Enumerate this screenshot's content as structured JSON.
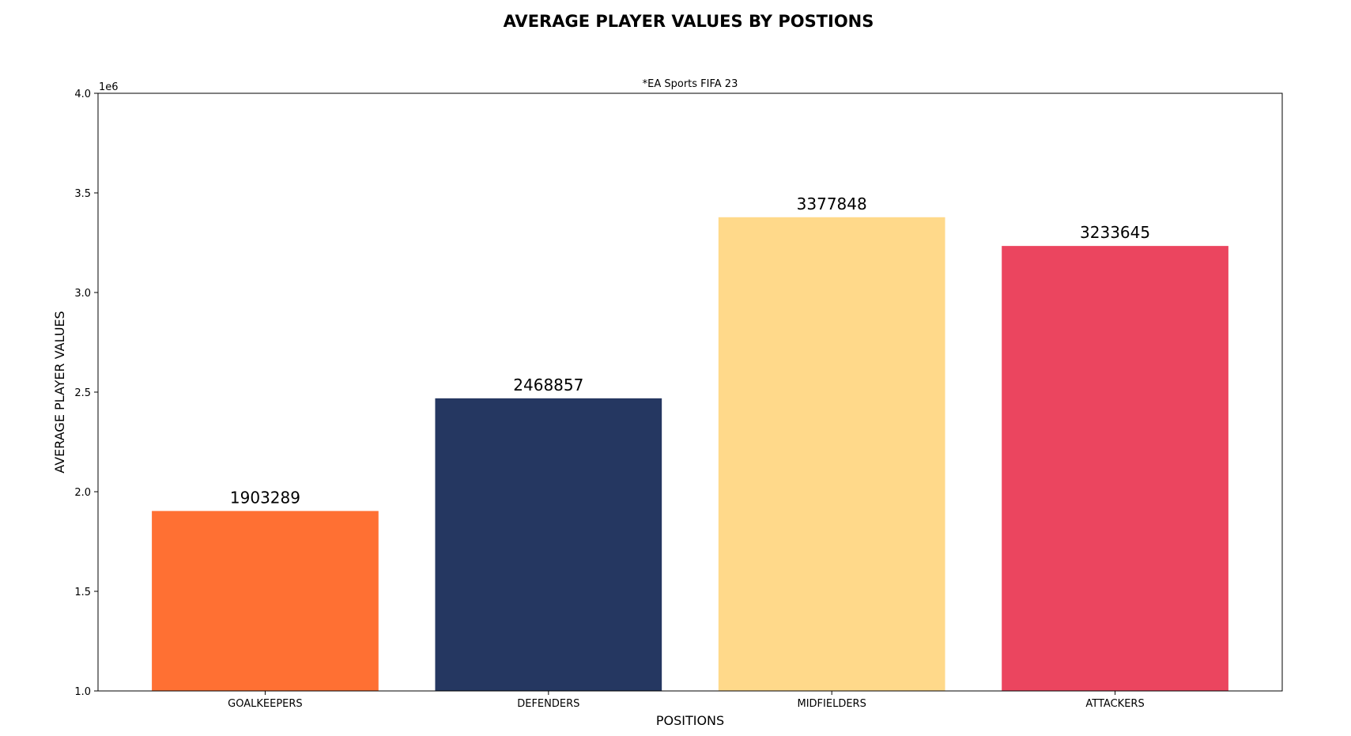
{
  "chart_data": {
    "type": "bar",
    "title": "AVERAGE PLAYER VALUES BY POSTIONS",
    "subtitle": "*EA Sports FIFA 23",
    "xlabel": "POSITIONS",
    "ylabel": "AVERAGE PLAYER VALUES",
    "categories": [
      "GOALKEEPERS",
      "DEFENDERS",
      "MIDFIELDERS",
      "ATTACKERS"
    ],
    "values": [
      1903289,
      2468857,
      3377848,
      3233645
    ],
    "data_labels": [
      "1903289",
      "2468857",
      "3377848",
      "3233645"
    ],
    "colors": [
      "#ff7033",
      "#253761",
      "#ffd98a",
      "#eb455f"
    ],
    "ylim": [
      1000000,
      4000000
    ],
    "yticks": [
      1000000,
      1500000,
      2000000,
      2500000,
      3000000,
      3500000,
      4000000
    ],
    "ytick_labels": [
      "1.0",
      "1.5",
      "2.0",
      "2.5",
      "3.0",
      "3.5",
      "4.0"
    ],
    "y_offset_label": "1e6",
    "grid": false,
    "legend": "none"
  }
}
